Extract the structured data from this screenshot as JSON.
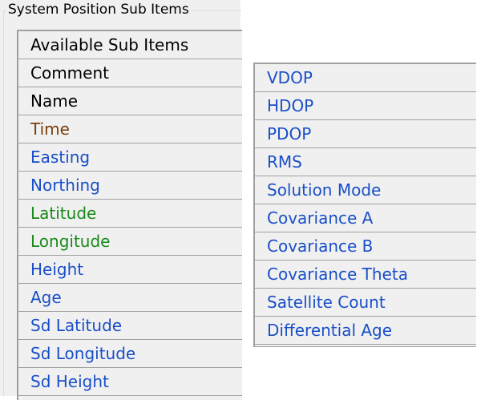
{
  "group_title": "System Position Sub Items",
  "colors": {
    "black": "#000000",
    "brown": "#7a3e0c",
    "blue": "#1a4fc8",
    "green": "#1a8a1a"
  },
  "left_list": [
    {
      "label": "Available Sub Items",
      "color": "black"
    },
    {
      "label": "Comment",
      "color": "black"
    },
    {
      "label": "Name",
      "color": "black"
    },
    {
      "label": "Time",
      "color": "brown"
    },
    {
      "label": "Easting",
      "color": "blue"
    },
    {
      "label": "Northing",
      "color": "blue"
    },
    {
      "label": "Latitude",
      "color": "green"
    },
    {
      "label": "Longitude",
      "color": "green"
    },
    {
      "label": "Height",
      "color": "blue"
    },
    {
      "label": "Age",
      "color": "blue"
    },
    {
      "label": "Sd Latitude",
      "color": "blue"
    },
    {
      "label": "Sd Longitude",
      "color": "blue"
    },
    {
      "label": "Sd Height",
      "color": "blue"
    }
  ],
  "right_list": [
    {
      "label": "VDOP",
      "color": "blue"
    },
    {
      "label": "HDOP",
      "color": "blue"
    },
    {
      "label": "PDOP",
      "color": "blue"
    },
    {
      "label": "RMS",
      "color": "blue"
    },
    {
      "label": "Solution Mode",
      "color": "blue"
    },
    {
      "label": "Covariance A",
      "color": "blue"
    },
    {
      "label": "Covariance B",
      "color": "blue"
    },
    {
      "label": "Covariance Theta",
      "color": "blue"
    },
    {
      "label": "Satellite Count",
      "color": "blue"
    },
    {
      "label": "Differential Age",
      "color": "blue"
    }
  ]
}
